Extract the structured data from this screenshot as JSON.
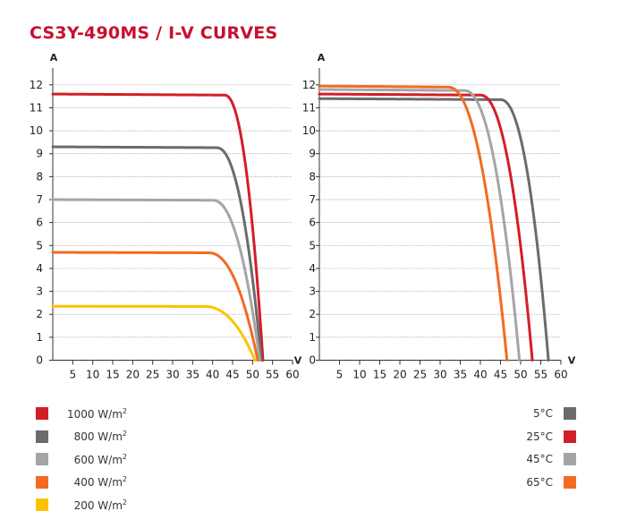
{
  "title": "CS3Y-490MS / I-V CURVES",
  "chart_data": [
    {
      "type": "line",
      "ylabel": "A",
      "xlabel": "V",
      "x_ticks": [
        5,
        10,
        15,
        20,
        25,
        30,
        35,
        40,
        45,
        50,
        55,
        60
      ],
      "y_ticks": [
        0,
        1,
        2,
        3,
        4,
        5,
        6,
        7,
        8,
        9,
        10,
        11,
        12
      ],
      "xlim": [
        0,
        60
      ],
      "ylim": [
        0,
        12.5
      ],
      "gridlines": [
        1,
        2,
        3,
        4,
        5,
        6,
        7,
        8,
        9,
        10,
        11,
        12
      ],
      "legend_position": "bottom-left",
      "series": [
        {
          "name": "1000 W/m",
          "unit_sup": "2",
          "color": "#d21f26",
          "isc": 11.6,
          "voc": 52.6,
          "knee": 43
        },
        {
          "name": "800 W/m",
          "unit_sup": "2",
          "color": "#6b6b6d",
          "isc": 9.3,
          "voc": 52.2,
          "knee": 41
        },
        {
          "name": "600 W/m",
          "unit_sup": "2",
          "color": "#a5a5a7",
          "isc": 7.0,
          "voc": 51.8,
          "knee": 40
        },
        {
          "name": "400 W/m",
          "unit_sup": "2",
          "color": "#f26b21",
          "isc": 4.7,
          "voc": 51.3,
          "knee": 39
        },
        {
          "name": "200 W/m",
          "unit_sup": "2",
          "color": "#fcc300",
          "isc": 2.35,
          "voc": 50.6,
          "knee": 38
        }
      ]
    },
    {
      "type": "line",
      "ylabel": "A",
      "xlabel": "V",
      "x_ticks": [
        5,
        10,
        15,
        20,
        25,
        30,
        35,
        40,
        45,
        50,
        55,
        60
      ],
      "y_ticks": [
        0,
        1,
        2,
        3,
        4,
        5,
        6,
        7,
        8,
        9,
        10,
        11,
        12
      ],
      "xlim": [
        0,
        60
      ],
      "ylim": [
        0,
        12.5
      ],
      "gridlines": [
        1,
        2,
        3,
        4,
        5,
        6,
        7,
        8,
        9,
        10,
        11,
        12
      ],
      "legend_position": "bottom-right",
      "series": [
        {
          "name": "5°C",
          "color": "#6b6b6d",
          "isc": 11.4,
          "voc": 56.9,
          "knee": 45
        },
        {
          "name": "25°C",
          "color": "#d21f26",
          "isc": 11.6,
          "voc": 52.9,
          "knee": 40
        },
        {
          "name": "45°C",
          "color": "#a5a5a7",
          "isc": 11.8,
          "voc": 49.7,
          "knee": 36
        },
        {
          "name": "65°C",
          "color": "#f26b21",
          "isc": 11.95,
          "voc": 46.6,
          "knee": 32
        }
      ]
    }
  ]
}
